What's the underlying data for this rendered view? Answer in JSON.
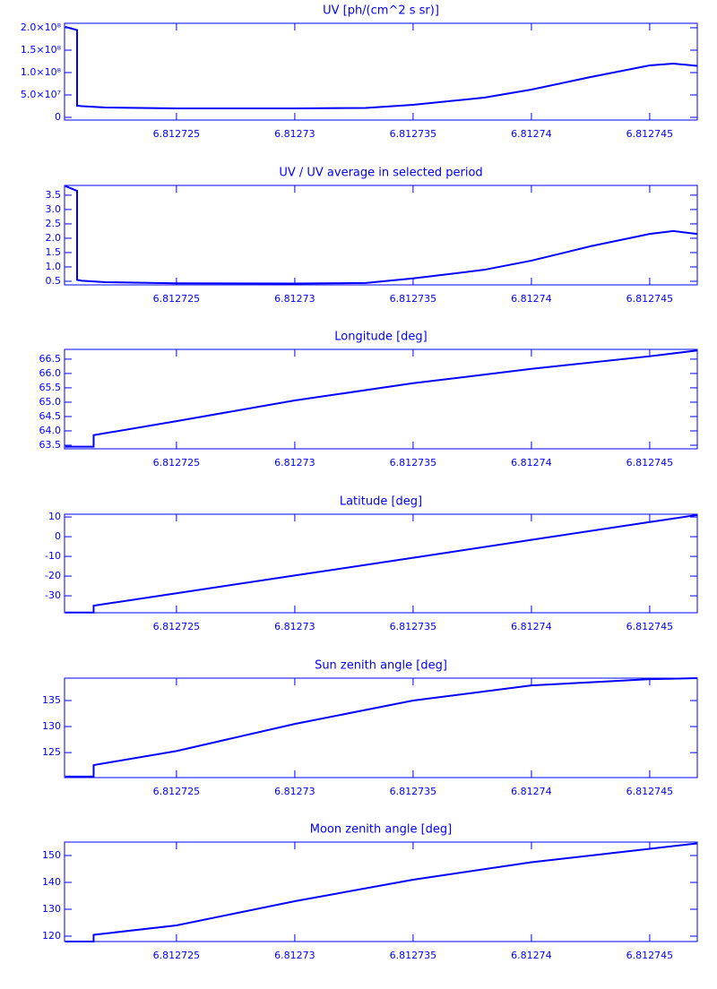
{
  "chart_data": [
    {
      "type": "line",
      "title": "UV [ph/(cm^2 s sr)]",
      "color": "#0000ff",
      "x": [
        6.8127203,
        6.8127208,
        6.8127208,
        6.812721,
        6.812722,
        6.812725,
        6.81273,
        6.812733,
        6.812735,
        6.812738,
        6.81274,
        6.8127425,
        6.812745,
        6.812746,
        6.812747
      ],
      "values": [
        202000000,
        195000000,
        26000000,
        25000000,
        22000000,
        20000000,
        20000000,
        21000000,
        28000000,
        44000000,
        62000000,
        90000000,
        116000000,
        120000000,
        115000000
      ],
      "xlim": [
        6.81272027,
        6.81274701
      ],
      "xticks": [
        6.812725,
        6.81273,
        6.812735,
        6.81274,
        6.812745
      ],
      "ylim": [
        -6000000,
        210000000
      ],
      "yticks": [
        0,
        {
          "value": 50000000,
          "label": "5.0×10⁷"
        },
        {
          "value": 100000000,
          "label": "1.0×10⁸"
        },
        {
          "value": 150000000,
          "label": "1.5×10⁸"
        },
        {
          "value": 200000000,
          "label": "2.0×10⁸"
        }
      ]
    },
    {
      "type": "line",
      "title": "UV / UV average in selected period",
      "color": "#0000ff",
      "x": [
        6.8127203,
        6.8127208,
        6.8127208,
        6.812721,
        6.812722,
        6.812725,
        6.81273,
        6.812733,
        6.812735,
        6.812738,
        6.81274,
        6.8127425,
        6.812745,
        6.812746,
        6.812747
      ],
      "values": [
        3.82,
        3.65,
        0.55,
        0.52,
        0.47,
        0.43,
        0.42,
        0.44,
        0.6,
        0.9,
        1.22,
        1.72,
        2.15,
        2.25,
        2.15
      ],
      "xlim": [
        6.81272027,
        6.81274701
      ],
      "xticks": [
        6.812725,
        6.81273,
        6.812735,
        6.81274,
        6.812745
      ],
      "ylim": [
        0.375,
        3.84
      ],
      "yticks": [
        0.5,
        {
          "value": 1,
          "label": "1.0"
        },
        1.5,
        {
          "value": 2,
          "label": "2.0"
        },
        2.5,
        {
          "value": 3,
          "label": "3.0"
        },
        3.5
      ]
    },
    {
      "type": "line",
      "title": "Longitude [deg]",
      "color": "#0000ff",
      "x": [
        6.8127203,
        6.8127215,
        6.8127215,
        6.812725,
        6.81273,
        6.812735,
        6.81274,
        6.812745,
        6.812747
      ],
      "values": [
        63.45,
        63.45,
        63.85,
        64.34,
        65.06,
        65.66,
        66.16,
        66.6,
        66.8
      ],
      "xlim": [
        6.81272027,
        6.81274701
      ],
      "xticks": [
        6.812725,
        6.81273,
        6.812735,
        6.81274,
        6.812745
      ],
      "ylim": [
        63.375,
        66.84
      ],
      "yticks": [
        63.5,
        {
          "value": 64,
          "label": "64.0"
        },
        64.5,
        {
          "value": 65,
          "label": "65.0"
        },
        65.5,
        {
          "value": 66,
          "label": "66.0"
        },
        66.5
      ]
    },
    {
      "type": "line",
      "title": "Latitude [deg]",
      "color": "#0000ff",
      "x": [
        6.8127203,
        6.8127215,
        6.8127215,
        6.812725,
        6.81273,
        6.812735,
        6.81274,
        6.812745,
        6.812747
      ],
      "values": [
        -38.5,
        -38.5,
        -35,
        -28.7,
        -19.7,
        -10.7,
        -1.6,
        7.4,
        11
      ],
      "xlim": [
        6.81272027,
        6.81274701
      ],
      "xticks": [
        6.812725,
        6.81273,
        6.812735,
        6.81274,
        6.812745
      ],
      "ylim": [
        -38.6,
        11.4
      ],
      "yticks": [
        -30,
        -20,
        -10,
        0,
        10
      ]
    },
    {
      "type": "line",
      "title": "Sun zenith angle [deg]",
      "color": "#0000ff",
      "x": [
        6.8127203,
        6.8127215,
        6.8127215,
        6.812725,
        6.81273,
        6.812735,
        6.81274,
        6.812745,
        6.812747
      ],
      "values": [
        120.4,
        120.4,
        122.6,
        125.3,
        130.5,
        135,
        137.9,
        139.1,
        139.3
      ],
      "xlim": [
        6.81272027,
        6.81274701
      ],
      "xticks": [
        6.812725,
        6.81273,
        6.812735,
        6.81274,
        6.812745
      ],
      "ylim": [
        120.2,
        139.3
      ],
      "yticks": [
        125,
        130,
        135
      ]
    },
    {
      "type": "line",
      "title": "Moon zenith angle [deg]",
      "color": "#0000ff",
      "x": [
        6.8127203,
        6.8127215,
        6.8127215,
        6.812725,
        6.81273,
        6.812735,
        6.81274,
        6.812745,
        6.812747
      ],
      "values": [
        118,
        118,
        120.5,
        124,
        133,
        141,
        147.5,
        152.5,
        154.5
      ],
      "xlim": [
        6.81272027,
        6.81274701
      ],
      "xticks": [
        6.812725,
        6.81273,
        6.812735,
        6.81274,
        6.812745
      ],
      "ylim": [
        118,
        155
      ],
      "yticks": [
        120,
        130,
        140,
        150
      ]
    }
  ]
}
